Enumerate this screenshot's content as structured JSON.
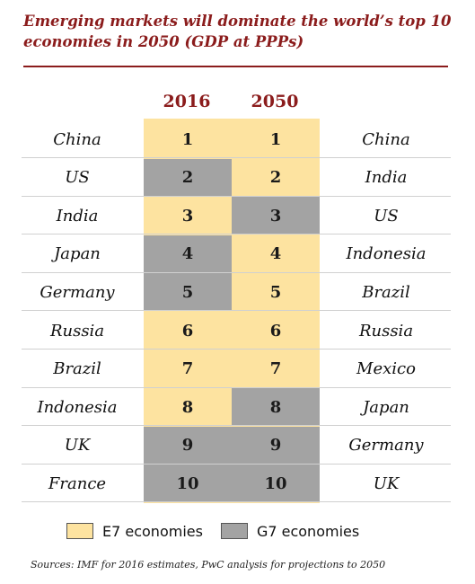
{
  "title": "Emerging markets will dominate the world’s top 10 economies in 2050 (GDP at PPPs)",
  "chart_data": {
    "type": "table",
    "columns": [
      "2016",
      "2050"
    ],
    "rows": [
      {
        "rank": "1",
        "country_2016": "China",
        "group_2016": "E7",
        "country_2050": "China",
        "group_2050": "E7"
      },
      {
        "rank": "2",
        "country_2016": "US",
        "group_2016": "G7",
        "country_2050": "India",
        "group_2050": "E7"
      },
      {
        "rank": "3",
        "country_2016": "India",
        "group_2016": "E7",
        "country_2050": "US",
        "group_2050": "G7"
      },
      {
        "rank": "4",
        "country_2016": "Japan",
        "group_2016": "G7",
        "country_2050": "Indonesia",
        "group_2050": "E7"
      },
      {
        "rank": "5",
        "country_2016": "Germany",
        "group_2016": "G7",
        "country_2050": "Brazil",
        "group_2050": "E7"
      },
      {
        "rank": "6",
        "country_2016": "Russia",
        "group_2016": "E7",
        "country_2050": "Russia",
        "group_2050": "E7"
      },
      {
        "rank": "7",
        "country_2016": "Brazil",
        "group_2016": "E7",
        "country_2050": "Mexico",
        "group_2050": "E7"
      },
      {
        "rank": "8",
        "country_2016": "Indonesia",
        "group_2016": "E7",
        "country_2050": "Japan",
        "group_2050": "G7"
      },
      {
        "rank": "9",
        "country_2016": "UK",
        "group_2016": "G7",
        "country_2050": "Germany",
        "group_2050": "G7"
      },
      {
        "rank": "10",
        "country_2016": "France",
        "group_2016": "G7",
        "country_2050": "UK",
        "group_2050": "G7"
      }
    ],
    "legend": [
      {
        "key": "E7",
        "label": "E7 economies",
        "color": "#fde3a0"
      },
      {
        "key": "G7",
        "label": "G7 economies",
        "color": "#a3a3a3"
      }
    ]
  },
  "source": "Sources: IMF for 2016 estimates, PwC analysis for projections to 2050",
  "colors": {
    "accent": "#8b1c1c",
    "e7": "#fde3a0",
    "g7": "#a3a3a3"
  }
}
